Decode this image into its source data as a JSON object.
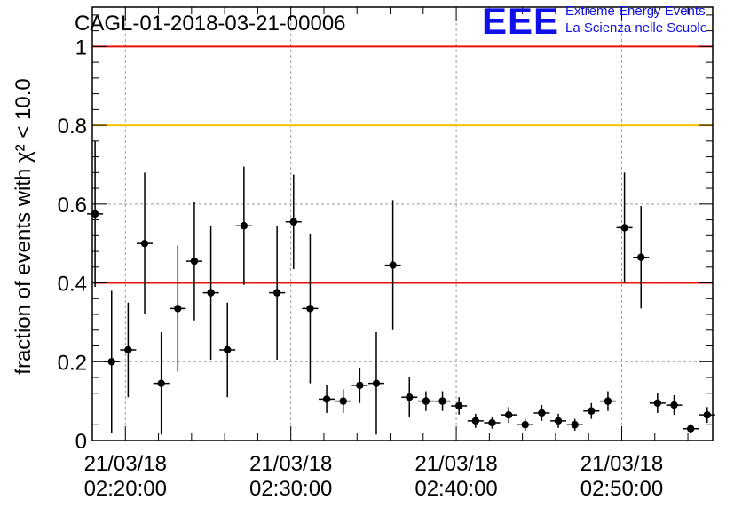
{
  "chart_data": {
    "type": "scatter",
    "title": "CAGL-01-2018-03-21-00006",
    "ylabel": "fraction of events with χ² < 10.0",
    "xlabel": "",
    "ylim": [
      0,
      1.1
    ],
    "yticks": [
      0,
      0.2,
      0.4,
      0.6,
      0.8,
      1
    ],
    "ytick_labels": [
      "0",
      "0.2",
      "0.4",
      "0.6",
      "0.8",
      "1"
    ],
    "xlim": [
      "02:18:00",
      "02:55:30"
    ],
    "xtick_labels": [
      {
        "date": "21/03/18",
        "time": "02:20:00"
      },
      {
        "date": "21/03/18",
        "time": "02:30:00"
      },
      {
        "date": "21/03/18",
        "time": "02:40:00"
      },
      {
        "date": "21/03/18",
        "time": "02:50:00"
      }
    ],
    "grid": true,
    "reference_lines": [
      {
        "y": 1.0,
        "color": "#e8140c"
      },
      {
        "y": 0.8,
        "color": "#ffc000"
      },
      {
        "y": 0.4,
        "color": "#e8140c"
      }
    ],
    "points": [
      {
        "x": "02:18:10",
        "y": 0.575,
        "err": 0.185
      },
      {
        "x": "02:19:10",
        "y": 0.2,
        "err": 0.18
      },
      {
        "x": "02:20:10",
        "y": 0.23,
        "err": 0.12
      },
      {
        "x": "02:21:10",
        "y": 0.5,
        "err": 0.18
      },
      {
        "x": "02:22:10",
        "y": 0.145,
        "err": 0.13
      },
      {
        "x": "02:23:10",
        "y": 0.335,
        "err": 0.16
      },
      {
        "x": "02:24:10",
        "y": 0.455,
        "err": 0.15
      },
      {
        "x": "02:25:10",
        "y": 0.375,
        "err": 0.17
      },
      {
        "x": "02:26:10",
        "y": 0.23,
        "err": 0.12
      },
      {
        "x": "02:27:10",
        "y": 0.545,
        "err": 0.15
      },
      {
        "x": "02:29:10",
        "y": 0.375,
        "err": 0.17
      },
      {
        "x": "02:30:10",
        "y": 0.555,
        "err": 0.12
      },
      {
        "x": "02:31:10",
        "y": 0.335,
        "err": 0.19
      },
      {
        "x": "02:32:10",
        "y": 0.105,
        "err": 0.035
      },
      {
        "x": "02:33:10",
        "y": 0.1,
        "err": 0.03
      },
      {
        "x": "02:34:10",
        "y": 0.14,
        "err": 0.045
      },
      {
        "x": "02:35:10",
        "y": 0.145,
        "err": 0.13
      },
      {
        "x": "02:36:10",
        "y": 0.445,
        "err": 0.165
      },
      {
        "x": "02:37:10",
        "y": 0.11,
        "err": 0.05
      },
      {
        "x": "02:38:10",
        "y": 0.1,
        "err": 0.025
      },
      {
        "x": "02:39:10",
        "y": 0.1,
        "err": 0.025
      },
      {
        "x": "02:40:10",
        "y": 0.088,
        "err": 0.022
      },
      {
        "x": "02:41:10",
        "y": 0.05,
        "err": 0.018
      },
      {
        "x": "02:42:10",
        "y": 0.045,
        "err": 0.015
      },
      {
        "x": "02:43:10",
        "y": 0.065,
        "err": 0.02
      },
      {
        "x": "02:44:10",
        "y": 0.04,
        "err": 0.015
      },
      {
        "x": "02:45:10",
        "y": 0.07,
        "err": 0.02
      },
      {
        "x": "02:46:10",
        "y": 0.05,
        "err": 0.018
      },
      {
        "x": "02:47:10",
        "y": 0.04,
        "err": 0.015
      },
      {
        "x": "02:48:10",
        "y": 0.075,
        "err": 0.02
      },
      {
        "x": "02:49:10",
        "y": 0.1,
        "err": 0.025
      },
      {
        "x": "02:50:10",
        "y": 0.54,
        "err": 0.14
      },
      {
        "x": "02:51:10",
        "y": 0.465,
        "err": 0.13
      },
      {
        "x": "02:52:10",
        "y": 0.095,
        "err": 0.025
      },
      {
        "x": "02:53:10",
        "y": 0.09,
        "err": 0.025
      },
      {
        "x": "02:54:10",
        "y": 0.03,
        "err": 0.012
      },
      {
        "x": "02:55:10",
        "y": 0.065,
        "err": 0.02
      }
    ]
  },
  "logo": {
    "mark": "EEE",
    "line1": "Extreme Energy Events",
    "line2": "La Scienza nelle Scuole",
    "color": "#1010e8"
  }
}
